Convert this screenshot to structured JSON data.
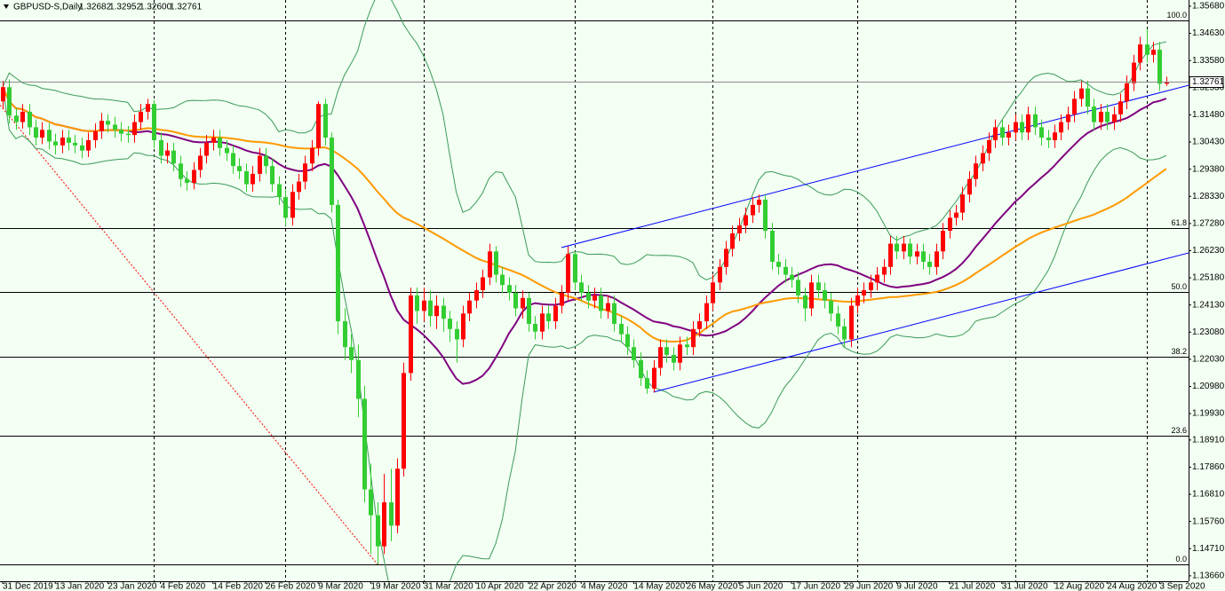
{
  "chart_data": {
    "type": "candlestick",
    "title": "GBPUSD-S,Daily",
    "last_bar_labels": [
      "1.32682",
      "1.32952",
      "1.32600",
      "1.32761"
    ],
    "up_color": "#ff0000",
    "down_color": "#32cd32",
    "background": "#f2fff2",
    "grid": false,
    "ylim": [
      1.1345,
      1.3592
    ],
    "yticks": [
      {
        "value": 1.3568,
        "label": "1.35680"
      },
      {
        "value": 1.3463,
        "label": "1.34630"
      },
      {
        "value": 1.3358,
        "label": "1.33580"
      },
      {
        "value": 1.3253,
        "label": "1.32530"
      },
      {
        "value": 1.3148,
        "label": "1.31480"
      },
      {
        "value": 1.3043,
        "label": "1.30430"
      },
      {
        "value": 1.2938,
        "label": "1.29380"
      },
      {
        "value": 1.2833,
        "label": "1.28330"
      },
      {
        "value": 1.2728,
        "label": "1.27280"
      },
      {
        "value": 1.2623,
        "label": "1.26230"
      },
      {
        "value": 1.2518,
        "label": "1.25180"
      },
      {
        "value": 1.2413,
        "label": "1.24130"
      },
      {
        "value": 1.2308,
        "label": "1.23080"
      },
      {
        "value": 1.2203,
        "label": "1.22030"
      },
      {
        "value": 1.2098,
        "label": "1.20980"
      },
      {
        "value": 1.1993,
        "label": "1.19930"
      },
      {
        "value": 1.1891,
        "label": "1.18910"
      },
      {
        "value": 1.1786,
        "label": "1.17860"
      },
      {
        "value": 1.1681,
        "label": "1.16810"
      },
      {
        "value": 1.1576,
        "label": "1.15760"
      },
      {
        "value": 1.1471,
        "label": "1.14710"
      },
      {
        "value": 1.1366,
        "label": "1.13660"
      }
    ],
    "x_labels": [
      {
        "value": 0,
        "label": "31 Dec 2019"
      },
      {
        "value": 8,
        "label": "13 Jan 2020"
      },
      {
        "value": 16,
        "label": "23 Jan 2020"
      },
      {
        "value": 24,
        "label": "4 Feb 2020"
      },
      {
        "value": 32,
        "label": "14 Feb 2020"
      },
      {
        "value": 40,
        "label": "26 Feb 2020"
      },
      {
        "value": 48,
        "label": "9 Mar 2020"
      },
      {
        "value": 56,
        "label": "19 Mar 2020"
      },
      {
        "value": 64,
        "label": "31 Mar 2020"
      },
      {
        "value": 72,
        "label": "10 Apr 2020"
      },
      {
        "value": 80,
        "label": "22 Apr 2020"
      },
      {
        "value": 88,
        "label": "4 May 2020"
      },
      {
        "value": 96,
        "label": "14 May 2020"
      },
      {
        "value": 104,
        "label": "26 May 2020"
      },
      {
        "value": 112,
        "label": "5 Jun 2020"
      },
      {
        "value": 120,
        "label": "17 Jun 2020"
      },
      {
        "value": 128,
        "label": "29 Jun 2020"
      },
      {
        "value": 136,
        "label": "9 Jul 2020"
      },
      {
        "value": 144,
        "label": "21 Jul 2020"
      },
      {
        "value": 152,
        "label": "31 Jul 2020"
      },
      {
        "value": 160,
        "label": "12 Aug 2020"
      },
      {
        "value": 168,
        "label": "24 Aug 2020"
      },
      {
        "value": 176,
        "label": "3 Sep 2020"
      }
    ],
    "period_separators": [
      23,
      43,
      64,
      87,
      108,
      130,
      154,
      174
    ],
    "indicators": [
      {
        "kind": "bands",
        "period": 20,
        "deviations": 2,
        "color": "#3c9a5a"
      },
      {
        "kind": "sma",
        "period": 20,
        "color": "#800080"
      },
      {
        "kind": "sma",
        "period": 50,
        "color": "#ff9900"
      }
    ],
    "trendlines": [
      {
        "from": [
          85,
          1.2635
        ],
        "to": [
          180.5,
          1.3263
        ],
        "color": "#0000ff"
      },
      {
        "from": [
          99,
          1.2076
        ],
        "to": [
          180.5,
          1.2615
        ],
        "color": "#0000ff"
      }
    ],
    "fib": {
      "anchors": [
        [
          -11,
          1.3514
        ],
        [
          57,
          1.1411
        ]
      ],
      "color": "#000000",
      "anchor_color": "#ff0000",
      "levels": [
        {
          "value": 100,
          "label": "100.0"
        },
        {
          "value": 61.8,
          "label": "61.8"
        },
        {
          "value": 50,
          "label": "50.0"
        },
        {
          "value": 38.2,
          "label": "38.2"
        },
        {
          "value": 23.6,
          "label": "23.6"
        },
        {
          "value": 0,
          "label": "0.0"
        }
      ]
    },
    "candles": [
      [
        1.32,
        1.328,
        1.317,
        1.3255
      ],
      [
        1.3255,
        1.3285,
        1.3115,
        1.3145
      ],
      [
        1.3145,
        1.3175,
        1.309,
        1.312
      ],
      [
        1.312,
        1.319,
        1.3095,
        1.316
      ],
      [
        1.316,
        1.319,
        1.307,
        1.31
      ],
      [
        1.31,
        1.313,
        1.303,
        1.306
      ],
      [
        1.306,
        1.312,
        1.3035,
        1.309
      ],
      [
        1.309,
        1.3115,
        1.3015,
        1.3045
      ],
      [
        1.3045,
        1.3075,
        1.2995,
        1.303
      ],
      [
        1.303,
        1.309,
        1.3,
        1.306
      ],
      [
        1.306,
        1.309,
        1.301,
        1.304
      ],
      [
        1.304,
        1.307,
        1.3,
        1.303
      ],
      [
        1.303,
        1.306,
        1.298,
        1.301
      ],
      [
        1.301,
        1.308,
        1.2985,
        1.305
      ],
      [
        1.305,
        1.3115,
        1.302,
        1.3085
      ],
      [
        1.3085,
        1.3155,
        1.3055,
        1.3125
      ],
      [
        1.3125,
        1.315,
        1.308,
        1.311
      ],
      [
        1.311,
        1.314,
        1.306,
        1.309
      ],
      [
        1.309,
        1.312,
        1.3045,
        1.3075
      ],
      [
        1.3075,
        1.3105,
        1.304,
        1.307
      ],
      [
        1.307,
        1.315,
        1.304,
        1.312
      ],
      [
        1.312,
        1.319,
        1.309,
        1.316
      ],
      [
        1.316,
        1.321,
        1.313,
        1.319
      ],
      [
        1.319,
        1.3205,
        1.302,
        1.305
      ],
      [
        1.305,
        1.308,
        1.296,
        1.299
      ],
      [
        1.299,
        1.304,
        1.296,
        1.301
      ],
      [
        1.301,
        1.304,
        1.293,
        1.296
      ],
      [
        1.296,
        1.299,
        1.287,
        1.29
      ],
      [
        1.29,
        1.293,
        1.2855,
        1.2885
      ],
      [
        1.2885,
        1.2965,
        1.286,
        1.2935
      ],
      [
        1.2935,
        1.302,
        1.2905,
        1.299
      ],
      [
        1.299,
        1.307,
        1.296,
        1.304
      ],
      [
        1.304,
        1.309,
        1.301,
        1.306
      ],
      [
        1.306,
        1.309,
        1.299,
        1.302
      ],
      [
        1.302,
        1.305,
        1.297,
        1.3
      ],
      [
        1.3,
        1.303,
        1.292,
        1.295
      ],
      [
        1.295,
        1.298,
        1.29,
        1.293
      ],
      [
        1.293,
        1.296,
        1.285,
        1.288
      ],
      [
        1.288,
        1.295,
        1.285,
        1.292
      ],
      [
        1.292,
        1.302,
        1.289,
        1.299
      ],
      [
        1.299,
        1.302,
        1.292,
        1.295
      ],
      [
        1.295,
        1.298,
        1.285,
        1.288
      ],
      [
        1.288,
        1.291,
        1.28,
        1.283
      ],
      [
        1.283,
        1.286,
        1.272,
        1.275
      ],
      [
        1.275,
        1.288,
        1.272,
        1.285
      ],
      [
        1.285,
        1.292,
        1.282,
        1.289
      ],
      [
        1.289,
        1.299,
        1.286,
        1.296
      ],
      [
        1.296,
        1.305,
        1.293,
        1.302
      ],
      [
        1.302,
        1.32,
        1.299,
        1.319
      ],
      [
        1.319,
        1.321,
        1.303,
        1.306
      ],
      [
        1.306,
        1.308,
        1.277,
        1.28
      ],
      [
        1.28,
        1.282,
        1.23,
        1.235
      ],
      [
        1.235,
        1.24,
        1.22,
        1.225
      ],
      [
        1.225,
        1.23,
        1.215,
        1.22
      ],
      [
        1.22,
        1.226,
        1.198,
        1.205
      ],
      [
        1.205,
        1.21,
        1.165,
        1.17
      ],
      [
        1.17,
        1.18,
        1.145,
        1.16
      ],
      [
        1.16,
        1.165,
        1.141,
        1.148
      ],
      [
        1.148,
        1.176,
        1.145,
        1.165
      ],
      [
        1.165,
        1.178,
        1.15,
        1.156
      ],
      [
        1.156,
        1.182,
        1.153,
        1.178
      ],
      [
        1.178,
        1.219,
        1.175,
        1.215
      ],
      [
        1.215,
        1.248,
        1.212,
        1.245
      ],
      [
        1.245,
        1.248,
        1.234,
        1.239
      ],
      [
        1.239,
        1.248,
        1.235,
        1.243
      ],
      [
        1.243,
        1.247,
        1.233,
        1.237
      ],
      [
        1.237,
        1.245,
        1.232,
        1.241
      ],
      [
        1.241,
        1.244,
        1.231,
        1.236
      ],
      [
        1.236,
        1.239,
        1.227,
        1.232
      ],
      [
        1.232,
        1.235,
        1.219,
        1.228
      ],
      [
        1.228,
        1.241,
        1.225,
        1.238
      ],
      [
        1.238,
        1.246,
        1.235,
        1.243
      ],
      [
        1.243,
        1.25,
        1.24,
        1.247
      ],
      [
        1.247,
        1.255,
        1.244,
        1.252
      ],
      [
        1.252,
        1.265,
        1.249,
        1.262
      ],
      [
        1.262,
        1.264,
        1.25,
        1.253
      ],
      [
        1.253,
        1.256,
        1.246,
        1.249
      ],
      [
        1.249,
        1.252,
        1.243,
        1.246
      ],
      [
        1.246,
        1.249,
        1.237,
        1.24
      ],
      [
        1.24,
        1.247,
        1.236,
        1.244
      ],
      [
        1.244,
        1.246,
        1.231,
        1.234
      ],
      [
        1.234,
        1.237,
        1.228,
        1.231
      ],
      [
        1.231,
        1.241,
        1.228,
        1.238
      ],
      [
        1.238,
        1.241,
        1.232,
        1.235
      ],
      [
        1.235,
        1.244,
        1.232,
        1.241
      ],
      [
        1.241,
        1.249,
        1.238,
        1.246
      ],
      [
        1.246,
        1.264,
        1.243,
        1.261
      ],
      [
        1.261,
        1.262,
        1.247,
        1.25
      ],
      [
        1.25,
        1.253,
        1.243,
        1.246
      ],
      [
        1.246,
        1.249,
        1.24,
        1.243
      ],
      [
        1.243,
        1.248,
        1.24,
        1.245
      ],
      [
        1.245,
        1.248,
        1.236,
        1.239
      ],
      [
        1.239,
        1.245,
        1.236,
        1.242
      ],
      [
        1.242,
        1.245,
        1.231,
        1.234
      ],
      [
        1.234,
        1.237,
        1.227,
        1.23
      ],
      [
        1.23,
        1.233,
        1.222,
        1.225
      ],
      [
        1.225,
        1.228,
        1.217,
        1.22
      ],
      [
        1.22,
        1.223,
        1.21,
        1.213
      ],
      [
        1.213,
        1.216,
        1.207,
        1.209
      ],
      [
        1.209,
        1.22,
        1.2075,
        1.217
      ],
      [
        1.217,
        1.228,
        1.214,
        1.225
      ],
      [
        1.225,
        1.228,
        1.219,
        1.222
      ],
      [
        1.222,
        1.225,
        1.216,
        1.219
      ],
      [
        1.219,
        1.229,
        1.216,
        1.226
      ],
      [
        1.226,
        1.229,
        1.222,
        1.225
      ],
      [
        1.225,
        1.235,
        1.222,
        1.232
      ],
      [
        1.232,
        1.238,
        1.229,
        1.235
      ],
      [
        1.235,
        1.245,
        1.232,
        1.242
      ],
      [
        1.242,
        1.253,
        1.239,
        1.25
      ],
      [
        1.25,
        1.259,
        1.247,
        1.256
      ],
      [
        1.256,
        1.266,
        1.253,
        1.263
      ],
      [
        1.263,
        1.272,
        1.26,
        1.269
      ],
      [
        1.269,
        1.275,
        1.266,
        1.272
      ],
      [
        1.272,
        1.279,
        1.269,
        1.276
      ],
      [
        1.276,
        1.283,
        1.273,
        1.28
      ],
      [
        1.28,
        1.284,
        1.277,
        1.282
      ],
      [
        1.282,
        1.284,
        1.267,
        1.27
      ],
      [
        1.27,
        1.273,
        1.255,
        1.258
      ],
      [
        1.258,
        1.261,
        1.253,
        1.256
      ],
      [
        1.256,
        1.259,
        1.25,
        1.253
      ],
      [
        1.253,
        1.256,
        1.248,
        1.251
      ],
      [
        1.251,
        1.254,
        1.242,
        1.245
      ],
      [
        1.245,
        1.248,
        1.235,
        1.24
      ],
      [
        1.24,
        1.253,
        1.237,
        1.25
      ],
      [
        1.25,
        1.253,
        1.244,
        1.247
      ],
      [
        1.247,
        1.25,
        1.24,
        1.243
      ],
      [
        1.243,
        1.246,
        1.235,
        1.238
      ],
      [
        1.238,
        1.241,
        1.23,
        1.233
      ],
      [
        1.233,
        1.236,
        1.225,
        1.228
      ],
      [
        1.228,
        1.244,
        1.225,
        1.241
      ],
      [
        1.241,
        1.248,
        1.238,
        1.245
      ],
      [
        1.245,
        1.25,
        1.242,
        1.247
      ],
      [
        1.247,
        1.253,
        1.244,
        1.25
      ],
      [
        1.25,
        1.256,
        1.247,
        1.253
      ],
      [
        1.253,
        1.259,
        1.25,
        1.256
      ],
      [
        1.256,
        1.268,
        1.253,
        1.265
      ],
      [
        1.265,
        1.268,
        1.259,
        1.262
      ],
      [
        1.262,
        1.268,
        1.259,
        1.265
      ],
      [
        1.265,
        1.267,
        1.257,
        1.26
      ],
      [
        1.26,
        1.265,
        1.257,
        1.262
      ],
      [
        1.262,
        1.265,
        1.255,
        1.258
      ],
      [
        1.258,
        1.261,
        1.253,
        1.256
      ],
      [
        1.256,
        1.265,
        1.253,
        1.262
      ],
      [
        1.262,
        1.273,
        1.259,
        1.27
      ],
      [
        1.27,
        1.278,
        1.267,
        1.275
      ],
      [
        1.275,
        1.28,
        1.272,
        1.277
      ],
      [
        1.277,
        1.287,
        1.274,
        1.284
      ],
      [
        1.284,
        1.293,
        1.281,
        1.29
      ],
      [
        1.29,
        1.299,
        1.287,
        1.296
      ],
      [
        1.296,
        1.303,
        1.293,
        1.3
      ],
      [
        1.3,
        1.308,
        1.297,
        1.305
      ],
      [
        1.305,
        1.313,
        1.302,
        1.31
      ],
      [
        1.31,
        1.313,
        1.303,
        1.306
      ],
      [
        1.306,
        1.311,
        1.303,
        1.308
      ],
      [
        1.308,
        1.315,
        1.305,
        1.312
      ],
      [
        1.312,
        1.315,
        1.305,
        1.308
      ],
      [
        1.308,
        1.318,
        1.305,
        1.315
      ],
      [
        1.315,
        1.318,
        1.307,
        1.31
      ],
      [
        1.31,
        1.313,
        1.303,
        1.306
      ],
      [
        1.306,
        1.309,
        1.302,
        1.305
      ],
      [
        1.305,
        1.311,
        1.302,
        1.308
      ],
      [
        1.308,
        1.315,
        1.305,
        1.312
      ],
      [
        1.312,
        1.318,
        1.309,
        1.315
      ],
      [
        1.315,
        1.324,
        1.312,
        1.321
      ],
      [
        1.321,
        1.328,
        1.318,
        1.325
      ],
      [
        1.325,
        1.328,
        1.315,
        1.318
      ],
      [
        1.318,
        1.321,
        1.309,
        1.312
      ],
      [
        1.312,
        1.319,
        1.309,
        1.316
      ],
      [
        1.316,
        1.319,
        1.309,
        1.312
      ],
      [
        1.312,
        1.318,
        1.309,
        1.315
      ],
      [
        1.315,
        1.323,
        1.312,
        1.32
      ],
      [
        1.32,
        1.33,
        1.317,
        1.327
      ],
      [
        1.327,
        1.338,
        1.324,
        1.335
      ],
      [
        1.335,
        1.345,
        1.332,
        1.342
      ],
      [
        1.342,
        1.348,
        1.335,
        1.338
      ],
      [
        1.338,
        1.343,
        1.335,
        1.34
      ],
      [
        1.34,
        1.343,
        1.324,
        1.3268
      ],
      [
        1.32682,
        1.32952,
        1.326,
        1.32761
      ]
    ]
  }
}
